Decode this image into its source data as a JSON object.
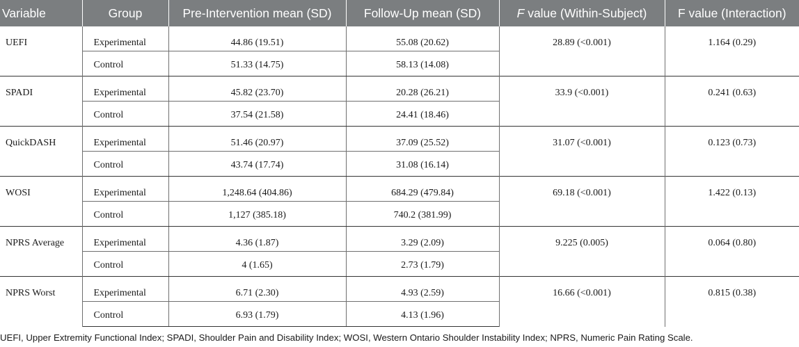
{
  "table": {
    "headers": {
      "variable": "Variable",
      "group": "Group",
      "pre": "Pre-Intervention mean (SD)",
      "follow": "Follow-Up mean (SD)",
      "f_within_prefix": "F",
      "f_within_rest": " value (Within-Subject)",
      "f_interaction": "F value (Interaction)"
    },
    "rows": [
      {
        "variable": "UEFI",
        "f_within": "28.89 (<0.001)",
        "f_interaction": "1.164 (0.29)",
        "groups": [
          {
            "group": "Experimental",
            "pre": "44.86 (19.51)",
            "follow": "55.08 (20.62)"
          },
          {
            "group": "Control",
            "pre": "51.33 (14.75)",
            "follow": "58.13 (14.08)"
          }
        ]
      },
      {
        "variable": "SPADI",
        "f_within": "33.9 (<0.001)",
        "f_interaction": "0.241 (0.63)",
        "groups": [
          {
            "group": "Experimental",
            "pre": "45.82 (23.70)",
            "follow": "20.28 (26.21)"
          },
          {
            "group": "Control",
            "pre": "37.54 (21.58)",
            "follow": "24.41 (18.46)"
          }
        ]
      },
      {
        "variable": "QuickDASH",
        "f_within": "31.07 (<0.001)",
        "f_interaction": "0.123 (0.73)",
        "groups": [
          {
            "group": "Experimental",
            "pre": "51.46 (20.97)",
            "follow": "37.09 (25.52)"
          },
          {
            "group": "Control",
            "pre": "43.74 (17.74)",
            "follow": "31.08 (16.14)"
          }
        ]
      },
      {
        "variable": "WOSI",
        "f_within": "69.18 (<0.001)",
        "f_interaction": "1.422 (0.13)",
        "groups": [
          {
            "group": "Experimental",
            "pre": "1,248.64 (404.86)",
            "follow": "684.29 (479.84)"
          },
          {
            "group": "Control",
            "pre": "1,127 (385.18)",
            "follow": "740.2 (381.99)"
          }
        ]
      },
      {
        "variable": "NPRS Average",
        "f_within": "9.225 (0.005)",
        "f_interaction": "0.064 (0.80)",
        "groups": [
          {
            "group": "Experimental",
            "pre": "4.36 (1.87)",
            "follow": "3.29 (2.09)"
          },
          {
            "group": "Control",
            "pre": "4 (1.65)",
            "follow": "2.73 (1.79)"
          }
        ]
      },
      {
        "variable": "NPRS Worst",
        "f_within": "16.66 (<0.001)",
        "f_interaction": "0.815 (0.38)",
        "groups": [
          {
            "group": "Experimental",
            "pre": "6.71 (2.30)",
            "follow": "4.93 (2.59)"
          },
          {
            "group": "Control",
            "pre": "6.93 (1.79)",
            "follow": "4.13 (1.96)"
          }
        ]
      }
    ]
  },
  "footnote": "UEFI, Upper Extremity Functional Index; SPADI, Shoulder Pain and Disability Index; WOSI, Western Ontario Shoulder Instability Index; NPRS, Numeric Pain Rating Scale."
}
